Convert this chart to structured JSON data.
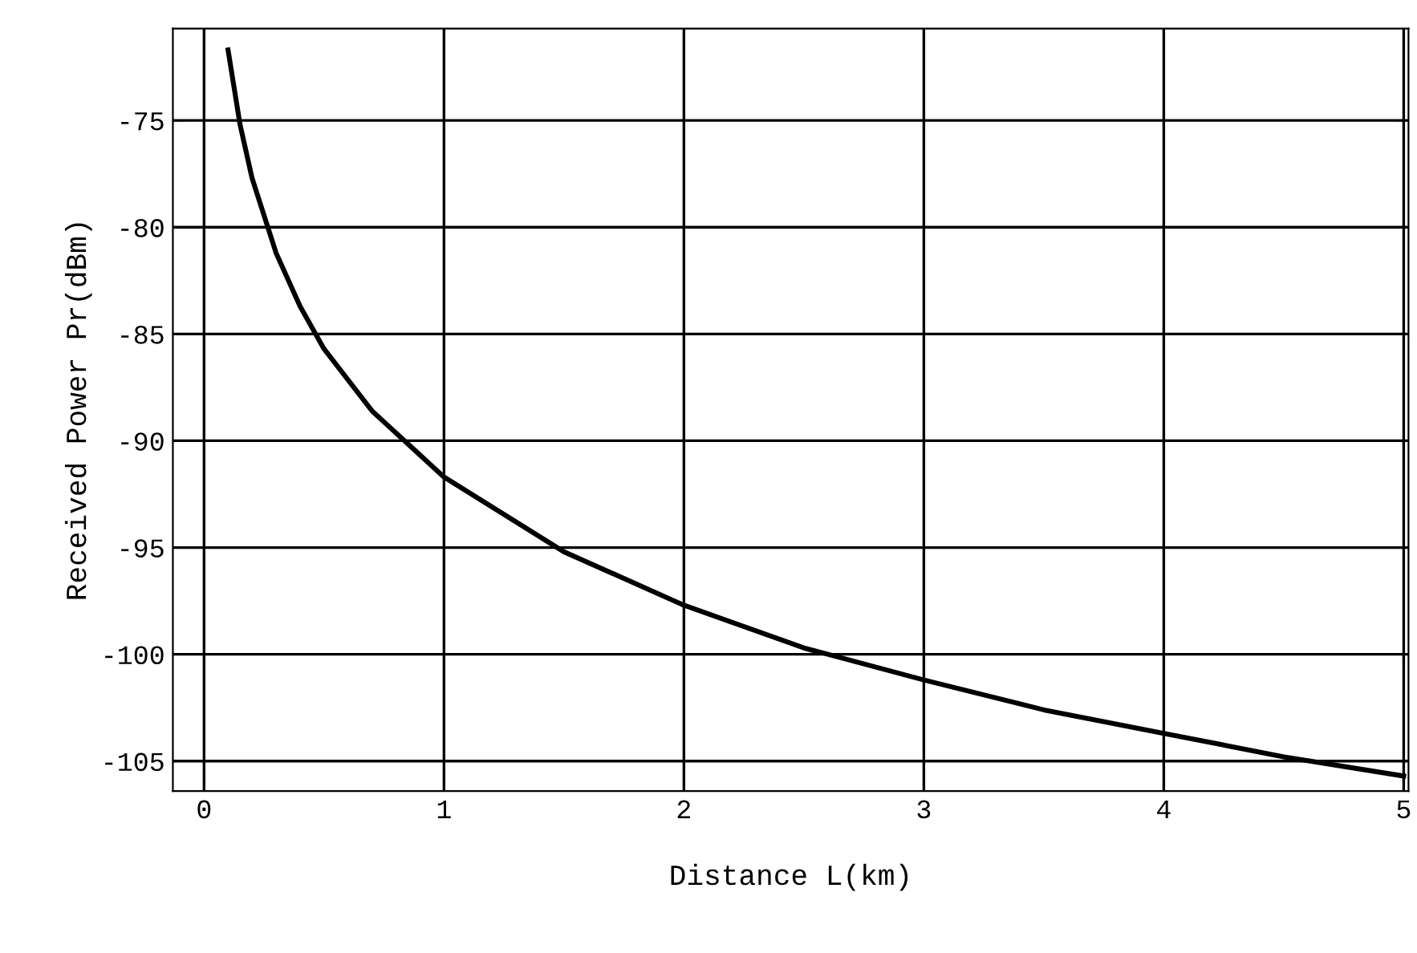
{
  "chart_data": {
    "type": "line",
    "xlabel": "Distance L(km)",
    "ylabel": "Received Power Pr(dBm)",
    "x": [
      0.1,
      0.15,
      0.2,
      0.3,
      0.4,
      0.5,
      0.7,
      1,
      1.5,
      2,
      2.5,
      3,
      3.5,
      4,
      4.5,
      5
    ],
    "series": [
      {
        "color": "#000000",
        "values": [
          -71.7,
          -75.2,
          -77.7,
          -81.2,
          -83.7,
          -85.7,
          -88.6,
          -91.7,
          -95.2,
          -97.7,
          -99.7,
          -101.2,
          -102.6,
          -103.7,
          -104.8,
          -105.7
        ]
      }
    ],
    "xlim": [
      -0.13,
      5.02
    ],
    "ylim": [
      -106.4,
      -70.7
    ],
    "xticks": [
      0,
      1,
      2,
      3,
      4,
      5
    ],
    "yticks": [
      -105,
      -100,
      -95,
      -90,
      -85,
      -80,
      -75
    ],
    "grid": true,
    "legend": false,
    "marker": "none",
    "line_style": "solid"
  }
}
